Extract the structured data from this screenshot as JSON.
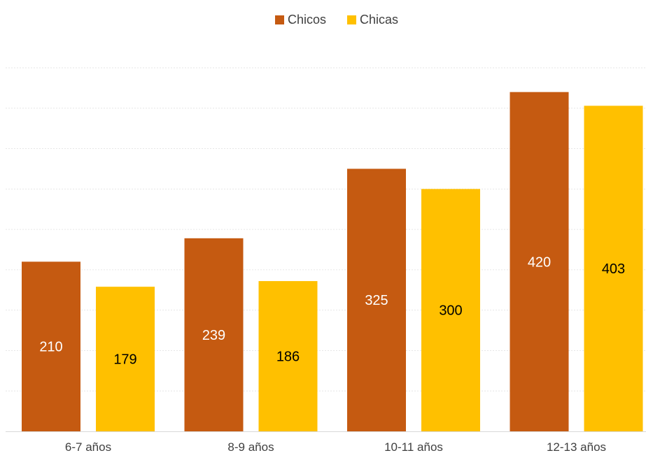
{
  "chart_data": {
    "type": "bar",
    "title": "",
    "xlabel": "",
    "ylabel": "",
    "categories": [
      "6-7 años",
      "8-9 años",
      "10-11 años",
      "12-13 años"
    ],
    "series": [
      {
        "name": "Chicos",
        "color": "#C55A11",
        "label_color": "#ffffff",
        "values": [
          210,
          239,
          325,
          420
        ]
      },
      {
        "name": "Chicas",
        "color": "#FFC000",
        "label_color": "#000000",
        "values": [
          179,
          186,
          300,
          403
        ]
      }
    ],
    "ylim": [
      0,
      450
    ],
    "y_gridline_step": 50,
    "grid": true,
    "legend_position": "top-center",
    "data_labels": "centered-in-bar"
  }
}
